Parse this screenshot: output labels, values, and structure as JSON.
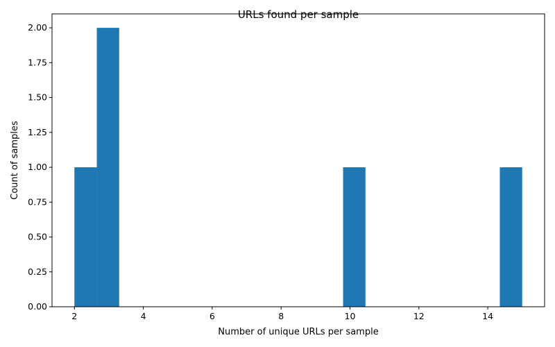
{
  "chart_data": {
    "type": "bar",
    "title": "URLs found per sample",
    "xlabel": "Number of unique URLs per sample",
    "ylabel": "Count of samples",
    "xlim": [
      1.35,
      15.65
    ],
    "ylim": [
      0,
      2.1
    ],
    "bins": [
      {
        "x_start": 2.0,
        "x_end": 2.65,
        "count": 1
      },
      {
        "x_start": 2.65,
        "x_end": 3.3,
        "count": 2
      },
      {
        "x_start": 3.3,
        "x_end": 3.95,
        "count": 0
      },
      {
        "x_start": 3.95,
        "x_end": 4.6,
        "count": 0
      },
      {
        "x_start": 4.6,
        "x_end": 5.25,
        "count": 0
      },
      {
        "x_start": 5.25,
        "x_end": 5.9,
        "count": 0
      },
      {
        "x_start": 5.9,
        "x_end": 6.55,
        "count": 0
      },
      {
        "x_start": 6.55,
        "x_end": 7.2,
        "count": 0
      },
      {
        "x_start": 7.2,
        "x_end": 7.85,
        "count": 0
      },
      {
        "x_start": 7.85,
        "x_end": 8.5,
        "count": 0
      },
      {
        "x_start": 8.5,
        "x_end": 9.15,
        "count": 0
      },
      {
        "x_start": 9.15,
        "x_end": 9.8,
        "count": 0
      },
      {
        "x_start": 9.8,
        "x_end": 10.45,
        "count": 1
      },
      {
        "x_start": 10.45,
        "x_end": 11.1,
        "count": 0
      },
      {
        "x_start": 11.1,
        "x_end": 11.75,
        "count": 0
      },
      {
        "x_start": 11.75,
        "x_end": 12.4,
        "count": 0
      },
      {
        "x_start": 12.4,
        "x_end": 13.05,
        "count": 0
      },
      {
        "x_start": 13.05,
        "x_end": 13.7,
        "count": 0
      },
      {
        "x_start": 13.7,
        "x_end": 14.35,
        "count": 0
      },
      {
        "x_start": 14.35,
        "x_end": 15.0,
        "count": 1
      }
    ],
    "xticks": [
      {
        "value": 2,
        "label": "2"
      },
      {
        "value": 4,
        "label": "4"
      },
      {
        "value": 6,
        "label": "6"
      },
      {
        "value": 8,
        "label": "8"
      },
      {
        "value": 10,
        "label": "10"
      },
      {
        "value": 12,
        "label": "12"
      },
      {
        "value": 14,
        "label": "14"
      }
    ],
    "yticks": [
      {
        "value": 0,
        "label": "0.00"
      },
      {
        "value": 0.25,
        "label": "0.25"
      },
      {
        "value": 0.5,
        "label": "0.50"
      },
      {
        "value": 0.75,
        "label": "0.75"
      },
      {
        "value": 1.0,
        "label": "1.00"
      },
      {
        "value": 1.25,
        "label": "1.25"
      },
      {
        "value": 1.5,
        "label": "1.50"
      },
      {
        "value": 1.75,
        "label": "1.75"
      },
      {
        "value": 2.0,
        "label": "2.00"
      }
    ],
    "bar_color": "#1f77b4",
    "grid": false,
    "legend": "none"
  }
}
